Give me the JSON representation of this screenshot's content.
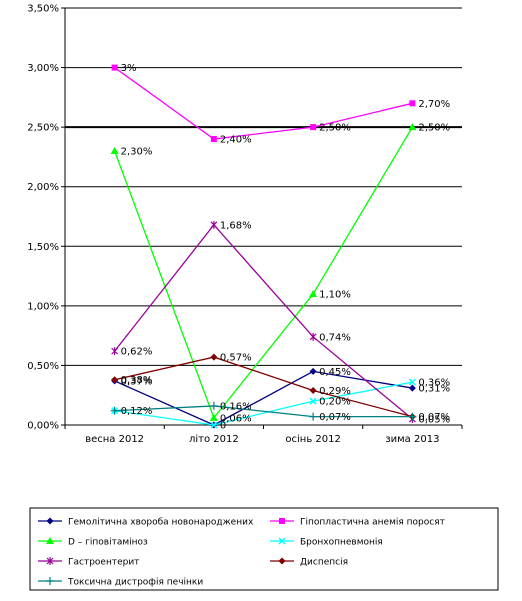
{
  "chart_data": {
    "type": "line",
    "categories": [
      "весна 2012",
      "літо 2012",
      "осінь 2012",
      "зима 2013"
    ],
    "y_ticks": [
      "0,00%",
      "0,50%",
      "1,00%",
      "1,50%",
      "2,00%",
      "2,50%",
      "3,00%",
      "3,50%"
    ],
    "ylim": [
      0,
      3.5
    ],
    "grid": true,
    "legend_position": "bottom",
    "series": [
      {
        "name": "Гемолітична хвороба новонароджених",
        "values": [
          0.37,
          0.0,
          0.45,
          0.31
        ],
        "labels": [
          "0,37%",
          "0",
          "0,45%",
          "0,31%"
        ],
        "color": "#000080",
        "marker": "diamond"
      },
      {
        "name": "Гіпопластична анемія поросят",
        "values": [
          3.0,
          2.4,
          2.5,
          2.7
        ],
        "labels": [
          "3%",
          "2,40%",
          "2,50%",
          "2,70%"
        ],
        "color": "#ff00ff",
        "marker": "square"
      },
      {
        "name": "D – гіповітаміноз",
        "values": [
          2.3,
          0.06,
          1.1,
          2.5
        ],
        "labels": [
          "2,30%",
          "0,06%",
          "1,10%",
          "2,50%"
        ],
        "color": "#00ff00",
        "marker": "triangle"
      },
      {
        "name": "Бронхопневмонія",
        "values": [
          0.12,
          0.0,
          0.2,
          0.36
        ],
        "labels": [
          "",
          "",
          "0,20%",
          "0,36%"
        ],
        "color": "#00ffff",
        "marker": "x"
      },
      {
        "name": "Гастроентерит",
        "values": [
          0.62,
          1.68,
          0.74,
          0.05
        ],
        "labels": [
          "0,62%",
          "1,68%",
          "0,74%",
          "0,05%"
        ],
        "color": "#990099",
        "marker": "star"
      },
      {
        "name": "Диспепсія",
        "values": [
          0.38,
          0.57,
          0.29,
          0.07
        ],
        "labels": [
          "0,38%",
          "0,57%",
          "0,29%",
          "0,07%"
        ],
        "color": "#800000",
        "marker": "diamond"
      },
      {
        "name": "Токсична дистрофія печінки",
        "values": [
          0.12,
          0.16,
          0.07,
          0.07
        ],
        "labels": [
          "0,12%",
          "0,16%",
          "0,07%",
          ""
        ],
        "color": "#008080",
        "marker": "plus"
      }
    ]
  }
}
